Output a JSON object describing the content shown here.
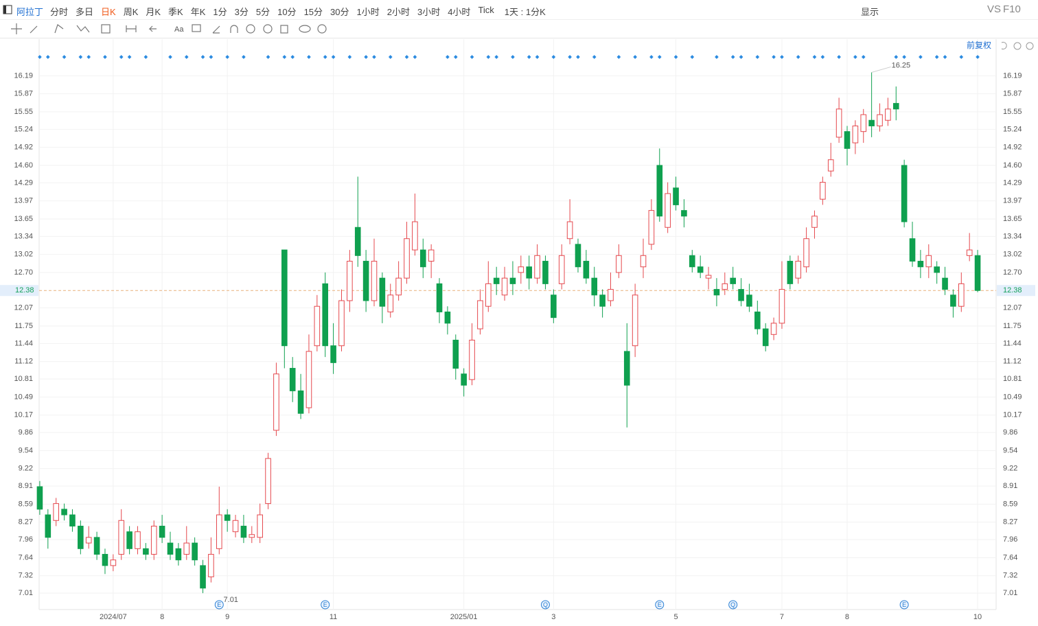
{
  "toolbar": {
    "symbol": "阿拉丁",
    "periods": [
      "分时",
      "多日",
      "日K",
      "周K",
      "月K",
      "季K",
      "年K",
      "1分",
      "3分",
      "5分",
      "10分",
      "15分",
      "30分",
      "1小时",
      "2小时",
      "3小时",
      "4小时",
      "Tick"
    ],
    "active_period_index": 2,
    "timeframe": "1天 : 1分K",
    "display": "显示",
    "vs": "VS",
    "f10": "F10",
    "adjust": "前复权"
  },
  "chart_data": {
    "type": "candlestick",
    "up_color": "#e5484d",
    "down_color": "#0fa04f",
    "ylim": [
      6.72,
      16.84
    ],
    "yticks": [
      7.01,
      7.32,
      7.64,
      7.96,
      8.27,
      8.59,
      8.91,
      9.22,
      9.54,
      9.86,
      10.17,
      10.49,
      10.81,
      11.12,
      11.44,
      11.75,
      12.07,
      {
        "value": 12.7,
        "label": "12.70"
      },
      13.02,
      13.34,
      13.65,
      13.97,
      14.29,
      {
        "value": 14.6,
        "label": "14.60"
      },
      14.92,
      15.24,
      15.55,
      15.87,
      16.19
    ],
    "last_price": 12.38,
    "annotations": {
      "high": 16.25,
      "low": 7.01
    },
    "events": [
      {
        "label": "E",
        "index": 22
      },
      {
        "label": "E",
        "index": 35
      },
      {
        "label": "Q",
        "index": 62
      },
      {
        "label": "E",
        "index": 76
      },
      {
        "label": "Q",
        "index": 85
      },
      {
        "label": "E",
        "index": 106
      }
    ],
    "categories": [
      null,
      null,
      null,
      null,
      null,
      null,
      null,
      null,
      null,
      "2024/07",
      null,
      null,
      null,
      null,
      null,
      "8",
      null,
      null,
      null,
      null,
      null,
      null,
      null,
      "9",
      null,
      null,
      null,
      null,
      null,
      null,
      null,
      null,
      null,
      null,
      null,
      null,
      "11",
      null,
      null,
      null,
      null,
      null,
      null,
      null,
      null,
      null,
      null,
      null,
      null,
      null,
      null,
      null,
      "2025/01",
      null,
      null,
      null,
      null,
      null,
      null,
      null,
      null,
      null,
      null,
      "3",
      null,
      null,
      null,
      null,
      null,
      null,
      null,
      null,
      null,
      null,
      null,
      null,
      null,
      null,
      "5",
      null,
      null,
      null,
      null,
      null,
      null,
      null,
      null,
      null,
      null,
      null,
      null,
      "7",
      null,
      null,
      null,
      null,
      null,
      null,
      null,
      "8",
      null,
      null,
      null,
      null,
      null,
      null,
      null,
      null,
      null,
      null,
      null,
      null,
      null,
      null,
      null,
      "10"
    ],
    "ohlc": [
      [
        8.9,
        9.0,
        8.4,
        8.5
      ],
      [
        8.4,
        8.5,
        7.8,
        8.0
      ],
      [
        8.3,
        8.7,
        8.2,
        8.6
      ],
      [
        8.5,
        8.6,
        8.3,
        8.4
      ],
      [
        8.4,
        8.5,
        8.1,
        8.2
      ],
      [
        8.2,
        8.3,
        7.7,
        7.8
      ],
      [
        7.9,
        8.2,
        7.8,
        8.0
      ],
      [
        8.0,
        8.1,
        7.6,
        7.7
      ],
      [
        7.7,
        7.8,
        7.35,
        7.5
      ],
      [
        7.5,
        7.7,
        7.4,
        7.6
      ],
      [
        7.7,
        8.5,
        7.6,
        8.3
      ],
      [
        8.1,
        8.2,
        7.7,
        7.8
      ],
      [
        7.8,
        8.2,
        7.7,
        8.1
      ],
      [
        7.8,
        7.9,
        7.6,
        7.7
      ],
      [
        7.7,
        8.3,
        7.6,
        8.2
      ],
      [
        8.2,
        8.4,
        7.9,
        8.0
      ],
      [
        7.9,
        8.1,
        7.6,
        7.7
      ],
      [
        7.8,
        7.9,
        7.5,
        7.6
      ],
      [
        7.7,
        8.2,
        7.6,
        7.9
      ],
      [
        7.9,
        8.0,
        7.5,
        7.6
      ],
      [
        7.5,
        7.6,
        7.01,
        7.1
      ],
      [
        7.3,
        8.0,
        7.2,
        7.7
      ],
      [
        7.8,
        8.9,
        7.7,
        8.4
      ],
      [
        8.4,
        8.5,
        8.1,
        8.3
      ],
      [
        8.1,
        8.4,
        8.0,
        8.3
      ],
      [
        8.2,
        8.4,
        7.9,
        8.0
      ],
      [
        8.0,
        8.2,
        7.9,
        8.05
      ],
      [
        8.0,
        8.6,
        7.9,
        8.4
      ],
      [
        8.6,
        9.5,
        8.5,
        9.4
      ],
      [
        9.9,
        11.1,
        9.8,
        10.9
      ],
      [
        13.1,
        13.1,
        11.0,
        11.4
      ],
      [
        11.0,
        11.2,
        10.4,
        10.6
      ],
      [
        10.6,
        10.9,
        10.1,
        10.2
      ],
      [
        10.3,
        11.6,
        10.2,
        11.3
      ],
      [
        11.4,
        12.3,
        11.3,
        12.1
      ],
      [
        12.5,
        12.7,
        11.2,
        11.4
      ],
      [
        11.4,
        11.8,
        10.9,
        11.1
      ],
      [
        11.4,
        12.4,
        11.3,
        12.2
      ],
      [
        12.2,
        13.1,
        12.0,
        12.9
      ],
      [
        13.5,
        14.4,
        12.8,
        13.0
      ],
      [
        12.9,
        13.1,
        12.0,
        12.2
      ],
      [
        12.2,
        13.3,
        12.1,
        12.9
      ],
      [
        12.6,
        12.7,
        11.8,
        12.1
      ],
      [
        12.0,
        12.5,
        11.9,
        12.3
      ],
      [
        12.3,
        12.9,
        12.2,
        12.6
      ],
      [
        12.6,
        13.6,
        12.5,
        13.3
      ],
      [
        13.1,
        14.1,
        13.0,
        13.6
      ],
      [
        13.1,
        13.3,
        12.6,
        12.8
      ],
      [
        12.9,
        13.2,
        12.6,
        13.1
      ],
      [
        12.5,
        12.6,
        11.8,
        12.0
      ],
      [
        12.0,
        12.1,
        11.6,
        11.8
      ],
      [
        11.5,
        11.6,
        10.8,
        11.0
      ],
      [
        10.9,
        11.0,
        10.5,
        10.7
      ],
      [
        10.8,
        11.8,
        10.7,
        11.5
      ],
      [
        11.7,
        12.4,
        11.6,
        12.2
      ],
      [
        12.1,
        12.9,
        12.0,
        12.5
      ],
      [
        12.6,
        12.8,
        12.3,
        12.5
      ],
      [
        12.3,
        12.8,
        12.2,
        12.6
      ],
      [
        12.6,
        12.9,
        12.3,
        12.5
      ],
      [
        12.7,
        13.0,
        12.5,
        12.8
      ],
      [
        12.8,
        13.0,
        12.4,
        12.6
      ],
      [
        12.6,
        13.2,
        12.5,
        13.0
      ],
      [
        12.9,
        13.0,
        12.4,
        12.5
      ],
      [
        12.3,
        12.4,
        11.8,
        11.9
      ],
      [
        12.5,
        13.2,
        12.4,
        13.0
      ],
      [
        13.3,
        14.0,
        13.2,
        13.6
      ],
      [
        13.2,
        13.3,
        12.7,
        12.8
      ],
      [
        12.9,
        13.1,
        12.5,
        12.6
      ],
      [
        12.6,
        12.8,
        12.1,
        12.3
      ],
      [
        12.3,
        12.4,
        11.9,
        12.1
      ],
      [
        12.2,
        12.7,
        12.1,
        12.4
      ],
      [
        12.7,
        13.2,
        12.6,
        13.0
      ],
      [
        11.3,
        11.8,
        9.95,
        10.7
      ],
      [
        11.4,
        12.5,
        11.2,
        12.3
      ],
      [
        12.8,
        13.3,
        12.6,
        13.0
      ],
      [
        13.2,
        14.0,
        13.1,
        13.8
      ],
      [
        14.6,
        14.9,
        13.6,
        13.7
      ],
      [
        13.5,
        14.3,
        13.4,
        14.1
      ],
      [
        14.2,
        14.4,
        13.8,
        13.9
      ],
      [
        13.8,
        14.0,
        13.5,
        13.7
      ],
      [
        13.0,
        13.1,
        12.7,
        12.8
      ],
      [
        12.8,
        13.0,
        12.6,
        12.7
      ],
      [
        12.6,
        12.8,
        12.4,
        12.65
      ],
      [
        12.4,
        12.6,
        12.1,
        12.3
      ],
      [
        12.4,
        12.7,
        12.3,
        12.5
      ],
      [
        12.6,
        12.8,
        12.4,
        12.5
      ],
      [
        12.4,
        12.6,
        12.1,
        12.2
      ],
      [
        12.3,
        12.5,
        12.0,
        12.1
      ],
      [
        12.0,
        12.2,
        11.6,
        11.7
      ],
      [
        11.7,
        11.8,
        11.3,
        11.4
      ],
      [
        11.6,
        11.9,
        11.5,
        11.8
      ],
      [
        11.8,
        12.9,
        11.7,
        12.4
      ],
      [
        12.9,
        13.0,
        12.4,
        12.5
      ],
      [
        12.6,
        13.0,
        12.5,
        12.9
      ],
      [
        12.8,
        13.5,
        12.7,
        13.3
      ],
      [
        13.5,
        13.8,
        13.3,
        13.7
      ],
      [
        14.0,
        14.4,
        13.9,
        14.3
      ],
      [
        14.5,
        15.0,
        14.4,
        14.7
      ],
      [
        15.1,
        15.8,
        15.0,
        15.6
      ],
      [
        15.2,
        15.3,
        14.6,
        14.9
      ],
      [
        15.0,
        15.4,
        14.8,
        15.3
      ],
      [
        15.2,
        15.6,
        15.0,
        15.5
      ],
      [
        15.4,
        16.25,
        15.1,
        15.3
      ],
      [
        15.3,
        15.7,
        15.2,
        15.5
      ],
      [
        15.4,
        15.8,
        15.3,
        15.6
      ],
      [
        15.7,
        16.0,
        15.4,
        15.6
      ],
      [
        14.6,
        14.7,
        13.5,
        13.6
      ],
      [
        13.3,
        13.6,
        12.8,
        12.9
      ],
      [
        12.9,
        13.1,
        12.6,
        12.8
      ],
      [
        12.8,
        13.2,
        12.6,
        13.0
      ],
      [
        12.8,
        12.9,
        12.5,
        12.7
      ],
      [
        12.6,
        12.8,
        12.3,
        12.4
      ],
      [
        12.3,
        12.4,
        11.9,
        12.1
      ],
      [
        12.1,
        12.7,
        12.0,
        12.5
      ],
      [
        13.0,
        13.4,
        12.9,
        13.1
      ],
      [
        13.0,
        13.1,
        12.35,
        12.38
      ]
    ]
  }
}
